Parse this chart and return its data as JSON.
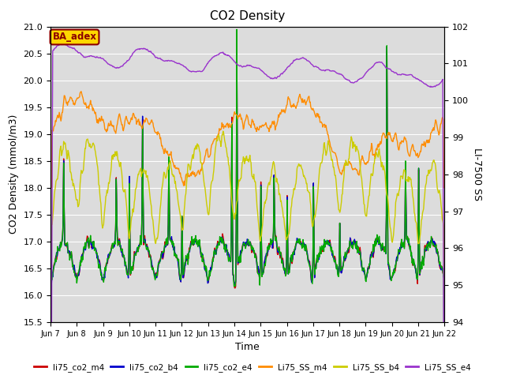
{
  "title": "CO2 Density",
  "ylabel_left": "CO2 Density (mmol/m3)",
  "ylabel_right": "LI-7500 SS",
  "xlabel": "Time",
  "ylim_left": [
    15.5,
    21.0
  ],
  "ylim_right": [
    94.0,
    102.0
  ],
  "annotation_text": "BA_adex",
  "annotation_color": "#8B0000",
  "annotation_bg": "#FFD700",
  "background_color": "#DCDCDC",
  "series": [
    {
      "label": "li75_co2_m4",
      "color": "#CC0000",
      "lw": 1.0
    },
    {
      "label": "li75_co2_b4",
      "color": "#0000CC",
      "lw": 1.0
    },
    {
      "label": "li75_co2_e4",
      "color": "#00AA00",
      "lw": 1.0
    },
    {
      "label": "Li75_SS_m4",
      "color": "#FF8C00",
      "lw": 1.0
    },
    {
      "label": "Li75_SS_b4",
      "color": "#CCCC00",
      "lw": 1.0
    },
    {
      "label": "Li75_SS_e4",
      "color": "#9933CC",
      "lw": 1.0
    }
  ],
  "xtick_labels": [
    "Jun 7",
    "Jun 8",
    "Jun 9",
    "Jun 10",
    "Jun 11",
    "Jun 12",
    "Jun 13",
    "Jun 14",
    "Jun 15",
    "Jun 16",
    "Jun 17",
    "Jun 18",
    "Jun 19",
    "Jun 20",
    "Jun 21",
    "Jun 22"
  ],
  "yticks_left": [
    15.5,
    16.0,
    16.5,
    17.0,
    17.5,
    18.0,
    18.5,
    19.0,
    19.5,
    20.0,
    20.5,
    21.0
  ],
  "yticks_right": [
    94.0,
    95.0,
    96.0,
    97.0,
    98.0,
    99.0,
    100.0,
    101.0,
    102.0
  ]
}
